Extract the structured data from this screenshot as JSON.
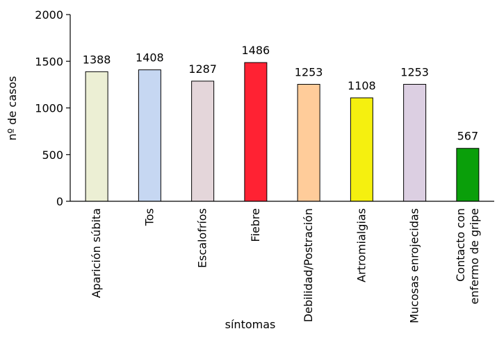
{
  "chart_data": {
    "type": "bar",
    "title": "",
    "xlabel": "síntomas",
    "ylabel": "nº de casos",
    "ylim": [
      0,
      2000
    ],
    "yticks": [
      0,
      500,
      1000,
      1500,
      2000
    ],
    "grid": false,
    "legend": "none",
    "categories": [
      "Aparición súbita",
      "Tos",
      "Escalofríos",
      "Fiebre",
      "Debilidad/Postración",
      "Artromialgias",
      "Mucosas enrojecidas",
      "Contacto con enfermo de gripe"
    ],
    "category_lines": [
      [
        "Aparición súbita"
      ],
      [
        "Tos"
      ],
      [
        "Escalofríos"
      ],
      [
        "Fiebre"
      ],
      [
        "Debilidad/Postración"
      ],
      [
        "Artromialgias"
      ],
      [
        "Mucosas enrojecidas"
      ],
      [
        "Contacto con",
        "enfermo de gripe"
      ]
    ],
    "values": [
      1388,
      1408,
      1287,
      1486,
      1253,
      1108,
      1253,
      567
    ],
    "colors": [
      "#ecefd4",
      "#c6d7f2",
      "#e4d6da",
      "#ff2233",
      "#ffcc9a",
      "#f5f00f",
      "#dccfe2",
      "#0a9f0a"
    ]
  }
}
